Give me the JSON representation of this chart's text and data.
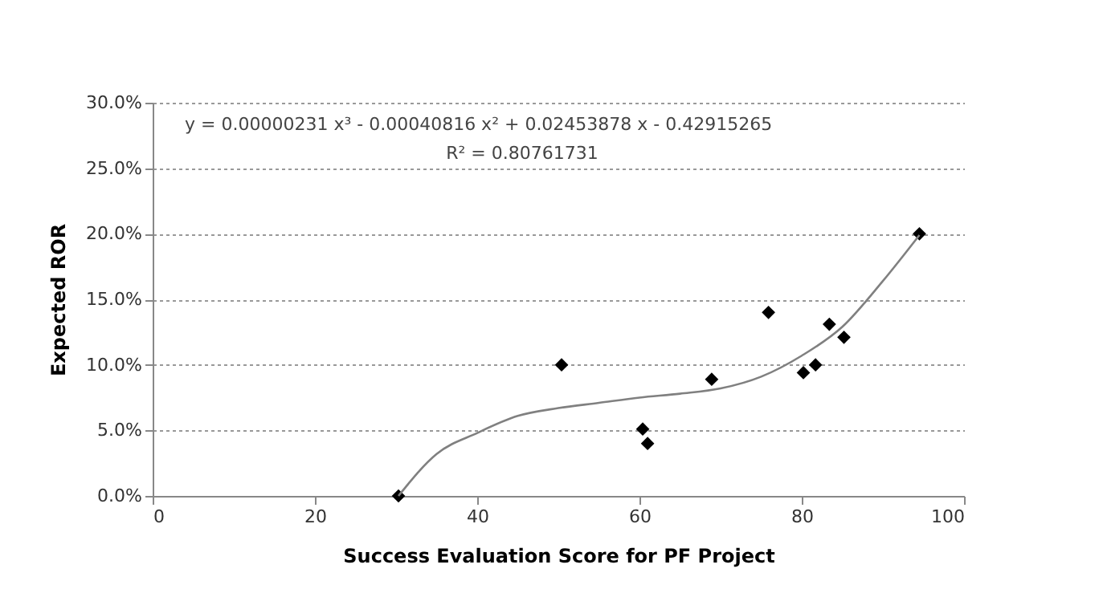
{
  "chart_data": {
    "type": "scatter",
    "xlabel": "Success Evaluation Score for PF Project",
    "ylabel": "Expected  ROR",
    "annotations": [
      "y = 0.00000231  x³ - 0.00040816  x² + 0.02453878  x - 0.42915265",
      "R² = 0.80761731"
    ],
    "series": [
      {
        "color": "#000000",
        "marker": "diamond",
        "x": [
          30.3,
          50.4,
          60.4,
          61.0,
          68.9,
          75.9,
          80.2,
          81.7,
          83.4,
          85.2,
          94.5
        ],
        "values": [
          0,
          10.0,
          5.1,
          4.0,
          8.9,
          14.0,
          9.4,
          10.0,
          13.1,
          12.1,
          20.0
        ]
      },
      {
        "type": "line",
        "color": "#808080",
        "x": [
          30.3,
          35,
          40,
          45,
          50,
          55,
          60,
          65,
          70,
          75,
          80,
          85,
          90,
          94.5
        ],
        "values": [
          0,
          3.2,
          4.8,
          6.1,
          6.7,
          7.1,
          7.5,
          7.8,
          8.2,
          9.1,
          10.7,
          12.9,
          16.4,
          19.9
        ]
      }
    ],
    "xlim": [
      0,
      100
    ],
    "xticks": [
      0,
      20,
      40,
      60,
      80,
      100
    ],
    "ylim": [
      0,
      30
    ],
    "yticks": [
      {
        "value": 0,
        "label": "0.0%"
      },
      {
        "value": 5,
        "label": "5.0%"
      },
      {
        "value": 10,
        "label": "10.0%"
      },
      {
        "value": 15,
        "label": "15.0%"
      },
      {
        "value": 20,
        "label": "20.0%"
      },
      {
        "value": 25,
        "label": "25.0%"
      },
      {
        "value": 30,
        "label": "30.0%"
      }
    ],
    "grid": "y"
  }
}
